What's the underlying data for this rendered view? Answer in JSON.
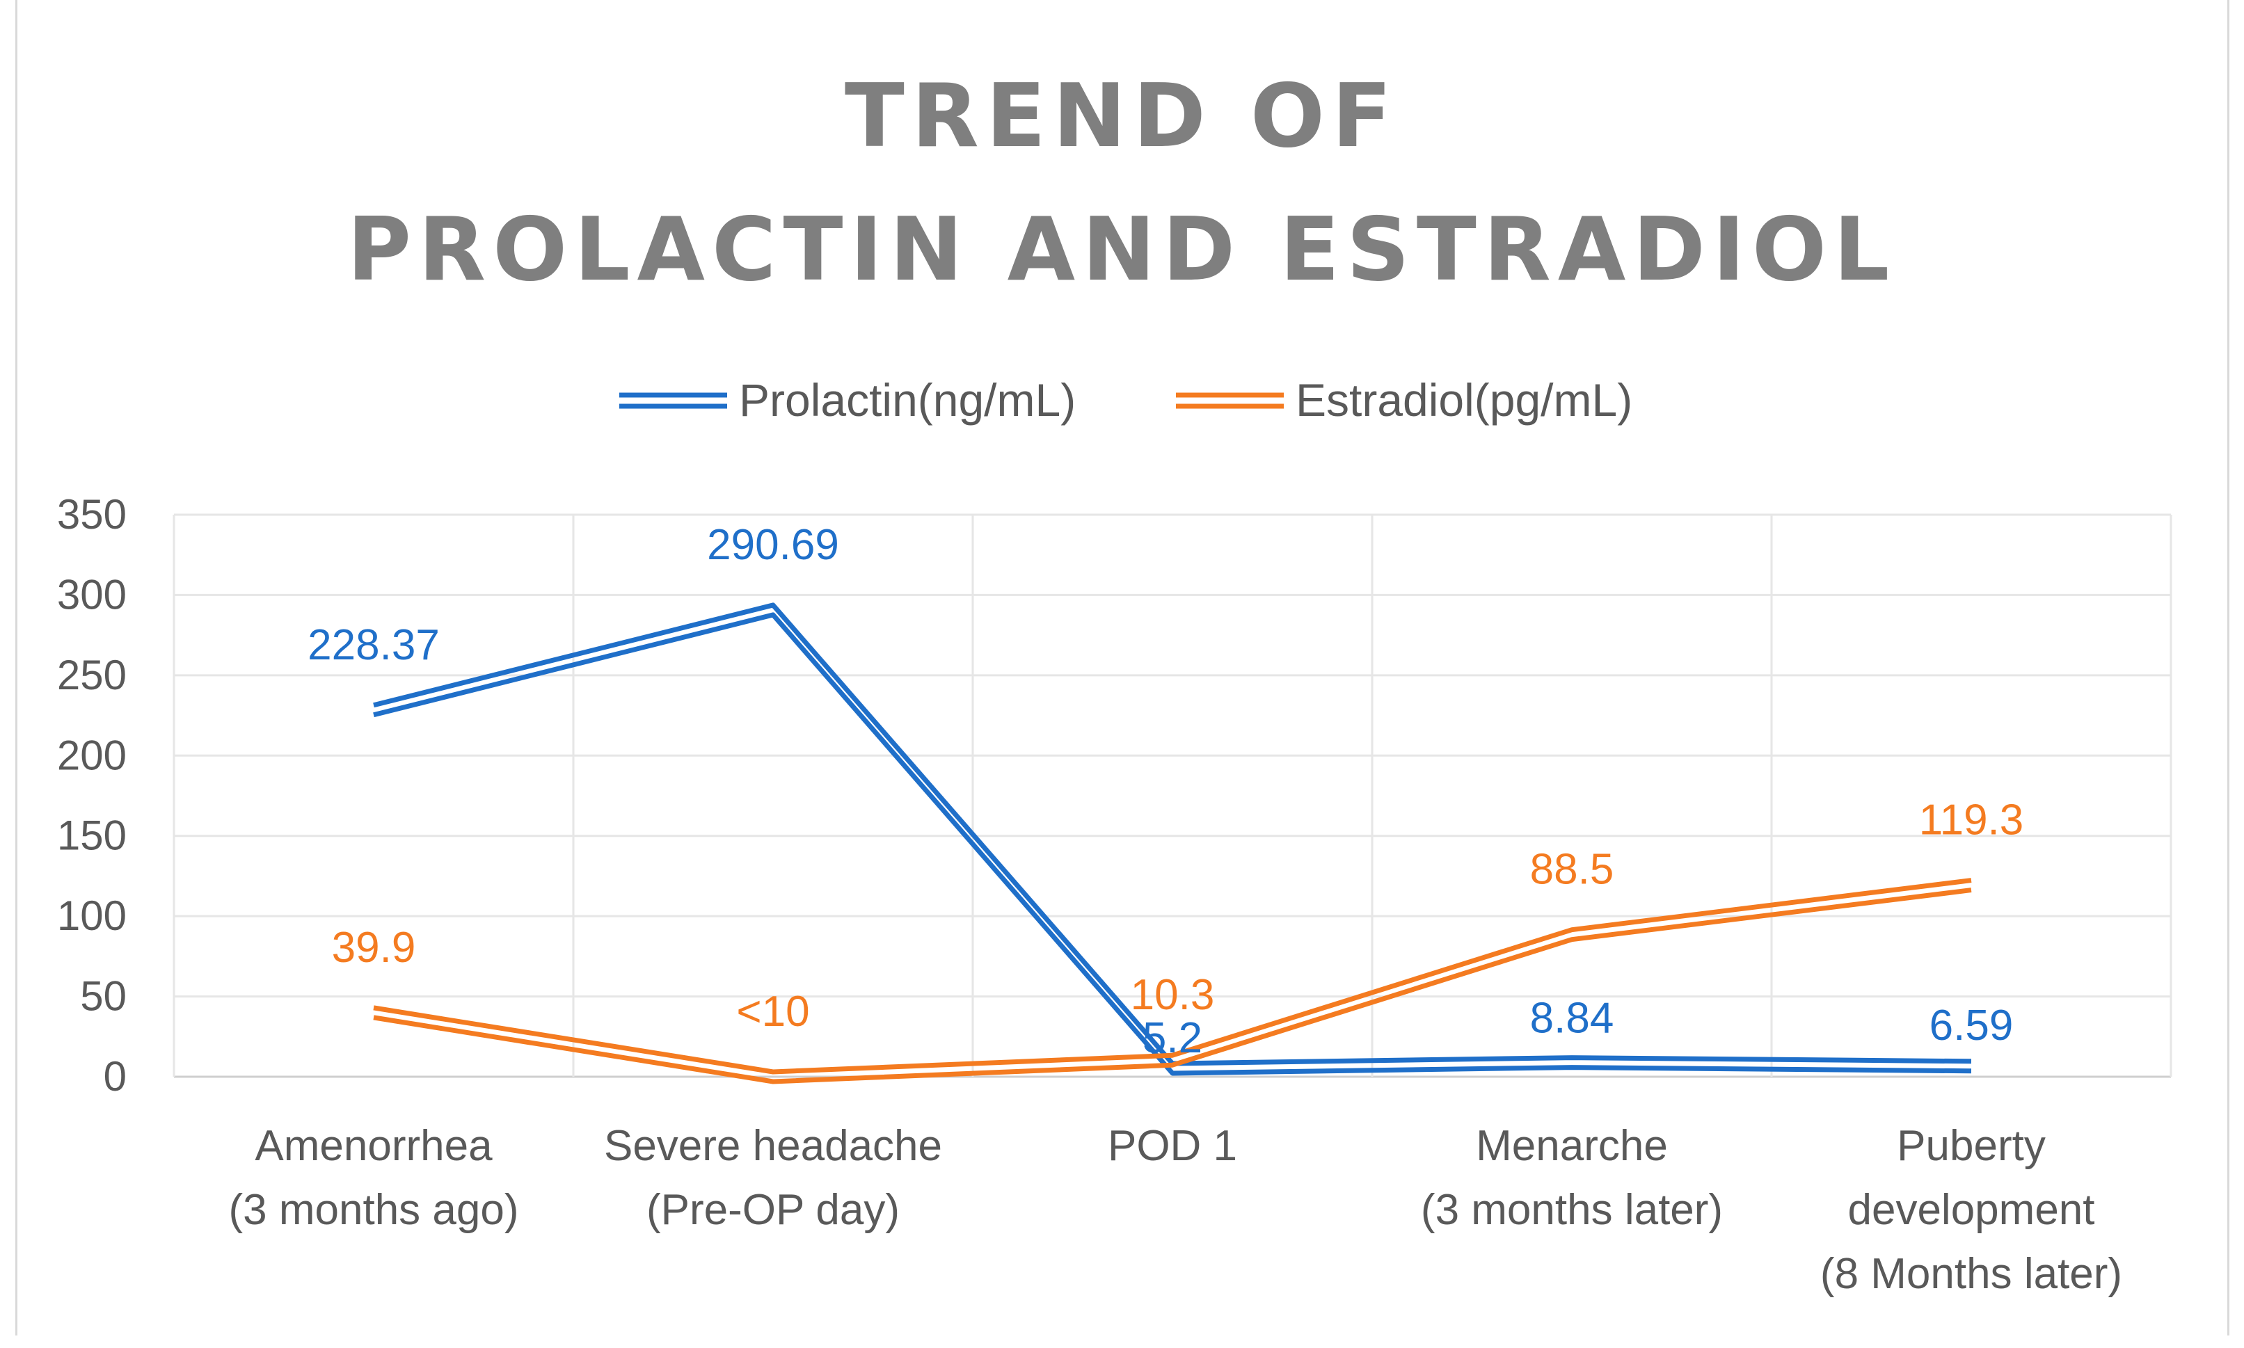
{
  "chart_data": {
    "type": "line",
    "title": [
      "TREND OF",
      "PROLACTIN AND ESTRADIOL"
    ],
    "categories": [
      [
        "Amenorrhea",
        "(3 months ago)"
      ],
      [
        "Severe headache",
        "(Pre-OP day)"
      ],
      [
        "POD 1"
      ],
      [
        "Menarche",
        "(3 months later)"
      ],
      [
        "Puberty",
        "development",
        "(8 Months later)"
      ]
    ],
    "ylim": [
      0,
      350
    ],
    "yticks": [
      0,
      50,
      100,
      150,
      200,
      250,
      300,
      350
    ],
    "grid": true,
    "legend_position": "top",
    "series": [
      {
        "name": "Prolactin(ng/mL)",
        "color": "#1f6fc9",
        "values": [
          228.37,
          290.69,
          5.2,
          8.84,
          6.59
        ],
        "labels": [
          "228.37",
          "290.69",
          "5.2",
          "8.84",
          "6.59"
        ]
      },
      {
        "name": "Estradiol(pg/mL)",
        "color": "#f47b20",
        "values": [
          39.9,
          0,
          10.3,
          88.5,
          119.3
        ],
        "labels": [
          "39.9",
          "<10",
          "10.3",
          "88.5",
          "119.3"
        ]
      }
    ]
  }
}
